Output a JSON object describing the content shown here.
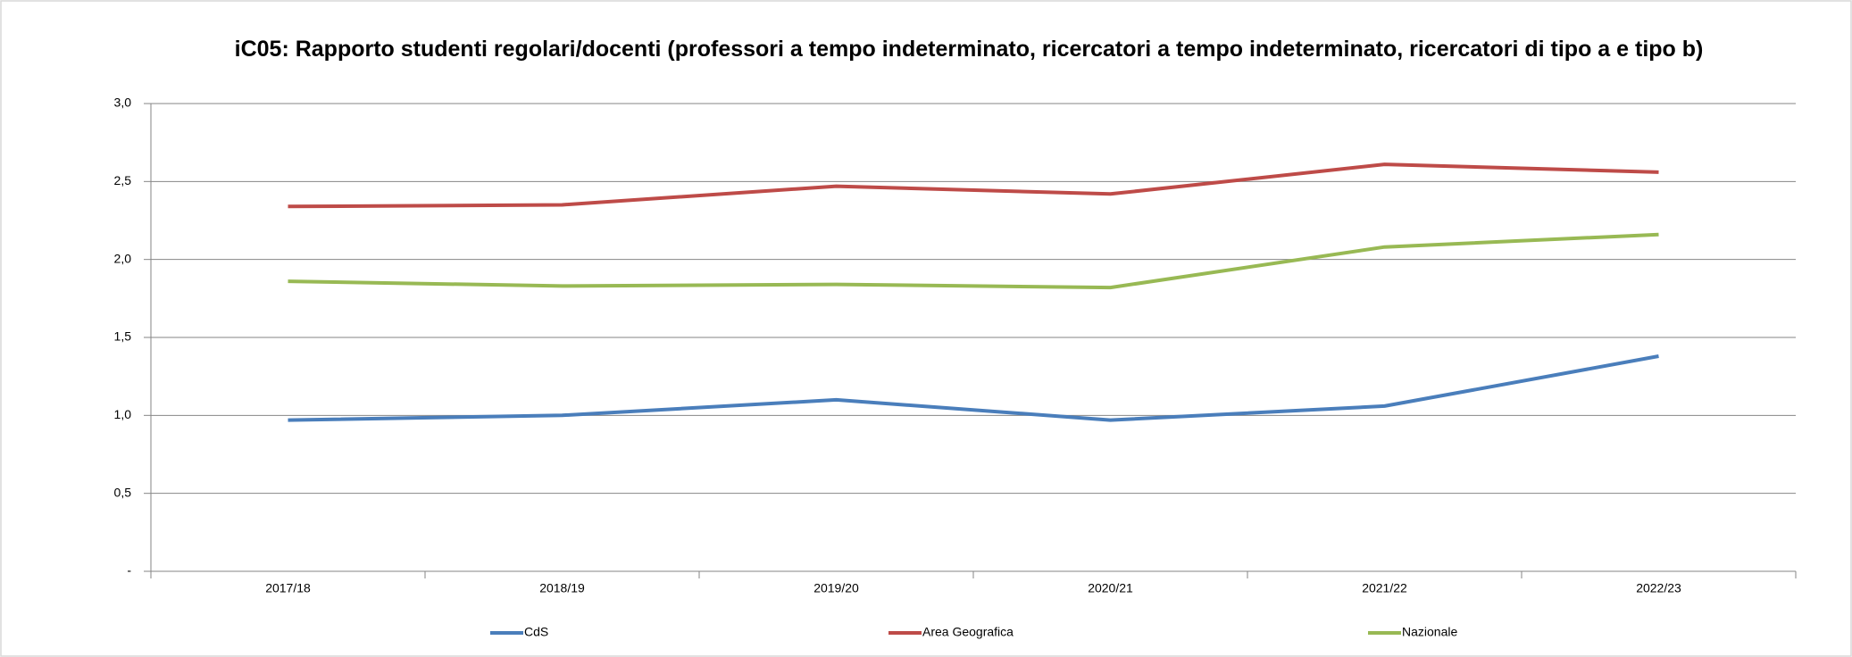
{
  "chart_data": {
    "type": "line",
    "title": "iC05: Rapporto studenti regolari/docenti (professori a tempo indeterminato, ricercatori a tempo indeterminato, ricercatori di tipo a e tipo b)",
    "categories": [
      "2017/18",
      "2018/19",
      "2019/20",
      "2020/21",
      "2021/22",
      "2022/23"
    ],
    "series": [
      {
        "name": "CdS",
        "color": "#4a7ebb",
        "values": [
          0.97,
          1.0,
          1.1,
          0.97,
          1.06,
          1.38
        ]
      },
      {
        "name": "Area Geografica",
        "color": "#be4b48",
        "values": [
          2.34,
          2.35,
          2.47,
          2.42,
          2.61,
          2.56
        ]
      },
      {
        "name": "Nazionale",
        "color": "#98b954",
        "values": [
          1.86,
          1.83,
          1.84,
          1.82,
          2.08,
          2.16
        ]
      }
    ],
    "ylim": [
      0,
      3
    ],
    "yticks": [
      {
        "value": 0,
        "label": "-"
      },
      {
        "value": 0.5,
        "label": "0,5"
      },
      {
        "value": 1,
        "label": "1,0"
      },
      {
        "value": 1.5,
        "label": "1,5"
      },
      {
        "value": 2,
        "label": "2,0"
      },
      {
        "value": 2.5,
        "label": "2,5"
      },
      {
        "value": 3,
        "label": "3,0"
      }
    ],
    "grid": true,
    "legend": "bottom"
  }
}
